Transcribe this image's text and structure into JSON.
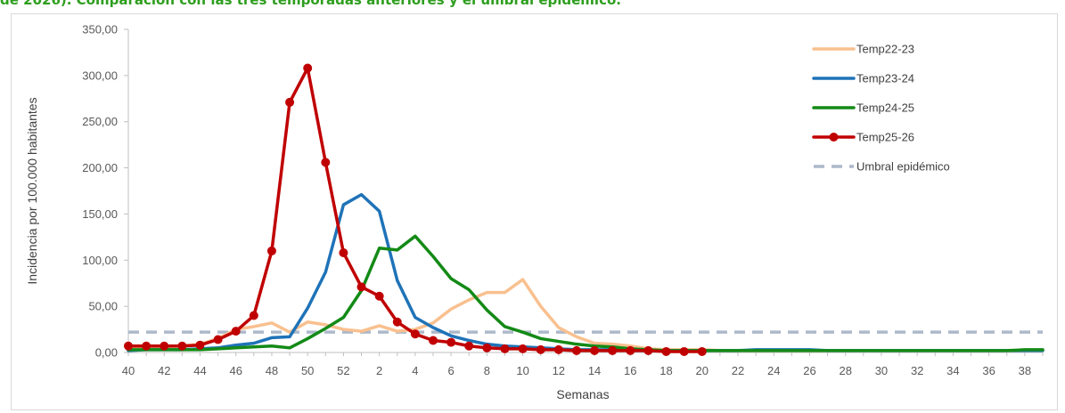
{
  "caption": "de 2026). Comparación con las tres temporadas anteriores y el umbral epidémico.",
  "chart_data": {
    "type": "line",
    "xlabel": "Semanas",
    "ylabel": "Incidencia por 100.000 habitantes",
    "ylim": [
      0,
      350
    ],
    "ytick_labels": [
      "0,00",
      "50,00",
      "100,00",
      "150,00",
      "200,00",
      "250,00",
      "300,00",
      "350,00"
    ],
    "categories": [
      "40",
      "41",
      "42",
      "43",
      "44",
      "45",
      "46",
      "47",
      "48",
      "49",
      "50",
      "51",
      "52",
      "1",
      "2",
      "3",
      "4",
      "5",
      "6",
      "7",
      "8",
      "9",
      "10",
      "11",
      "12",
      "13",
      "14",
      "15",
      "16",
      "17",
      "18",
      "19",
      "20",
      "21",
      "22",
      "23",
      "24",
      "25",
      "26",
      "27",
      "28",
      "29",
      "30",
      "31",
      "32",
      "33",
      "34",
      "35",
      "36",
      "37",
      "38",
      "39"
    ],
    "xtick_labels": [
      "40",
      "42",
      "44",
      "46",
      "48",
      "50",
      "52",
      "2",
      "4",
      "6",
      "8",
      "10",
      "12",
      "14",
      "16",
      "18",
      "20",
      "22",
      "24",
      "26",
      "28",
      "30",
      "32",
      "34",
      "36",
      "38"
    ],
    "grid": false,
    "legend_position": "top-right",
    "series": [
      {
        "name": "Temp22-23",
        "color": "#f9c08f",
        "style": "solid",
        "markers": false,
        "values": [
          5,
          5,
          6,
          7,
          9,
          15,
          25,
          28,
          32,
          22,
          33,
          30,
          25,
          23,
          29,
          23,
          25,
          32,
          47,
          57,
          65,
          65,
          79,
          50,
          27,
          17,
          10,
          9,
          7,
          4,
          3,
          3,
          3,
          2,
          2,
          2,
          2,
          2,
          2,
          2,
          2,
          2,
          2,
          2,
          2,
          2,
          2,
          2,
          2,
          2,
          2,
          2
        ]
      },
      {
        "name": "Temp23-24",
        "color": "#1f73b8",
        "style": "solid",
        "markers": false,
        "values": [
          2,
          3,
          3,
          3,
          4,
          5,
          8,
          10,
          16,
          17,
          48,
          87,
          160,
          171,
          153,
          78,
          38,
          27,
          18,
          13,
          9,
          7,
          6,
          5,
          4,
          3,
          3,
          3,
          2,
          2,
          2,
          2,
          2,
          2,
          2,
          3,
          3,
          3,
          3,
          2,
          2,
          2,
          2,
          2,
          2,
          2,
          2,
          2,
          2,
          2,
          2,
          2
        ]
      },
      {
        "name": "Temp24-25",
        "color": "#138a16",
        "style": "solid",
        "markers": false,
        "values": [
          3,
          3,
          3,
          3,
          3,
          4,
          5,
          6,
          7,
          5,
          15,
          26,
          38,
          67,
          113,
          111,
          126,
          104,
          80,
          68,
          46,
          28,
          22,
          15,
          12,
          9,
          7,
          6,
          4,
          3,
          2,
          2,
          2,
          2,
          2,
          2,
          2,
          2,
          2,
          2,
          2,
          2,
          2,
          2,
          2,
          2,
          2,
          2,
          2,
          2,
          3,
          3
        ]
      },
      {
        "name": "Temp25-26",
        "color": "#c00000",
        "style": "solid",
        "markers": true,
        "values": [
          7,
          7,
          7,
          7,
          8,
          14,
          23,
          40,
          110,
          271,
          308,
          206,
          108,
          71,
          61,
          33,
          20,
          13,
          11,
          7,
          5,
          4,
          4,
          3,
          3,
          2,
          2,
          2,
          2,
          2,
          1,
          1,
          1,
          null,
          null,
          null,
          null,
          null,
          null,
          null,
          null,
          null,
          null,
          null,
          null,
          null,
          null,
          null,
          null,
          null,
          null,
          null
        ]
      },
      {
        "name": "Umbral epidémico",
        "color": "#adb9ca",
        "style": "dashed",
        "markers": false,
        "values": [
          22,
          22,
          22,
          22,
          22,
          22,
          22,
          22,
          22,
          22,
          22,
          22,
          22,
          22,
          22,
          22,
          22,
          22,
          22,
          22,
          22,
          22,
          22,
          22,
          22,
          22,
          22,
          22,
          22,
          22,
          22,
          22,
          22,
          22,
          22,
          22,
          22,
          22,
          22,
          22,
          22,
          22,
          22,
          22,
          22,
          22,
          22,
          22,
          22,
          22,
          22,
          22
        ]
      }
    ]
  }
}
